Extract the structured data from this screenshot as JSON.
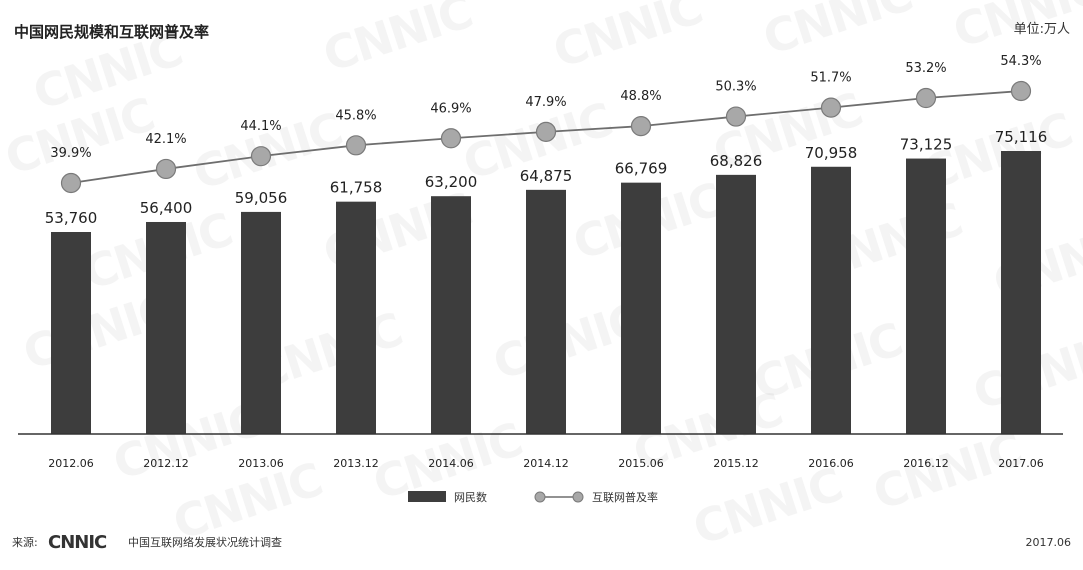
{
  "header": {
    "title": "中国网民规模和互联网普及率",
    "unit": "单位:万人"
  },
  "legend": {
    "bar_label": "网民数",
    "line_label": "互联网普及率"
  },
  "footer": {
    "source_prefix": "来源:",
    "source_logo": "CNNIC",
    "source_text": "中国互联网络发展状况统计调查",
    "date": "2017.06"
  },
  "watermark": "CNNIC",
  "colors": {
    "bar": "#3d3d3d",
    "line": "#6e6e6e",
    "marker_fill": "#a8a8a8",
    "marker_stroke": "#7a7a7a",
    "axis": "#333333"
  },
  "chart_data": {
    "type": "bar",
    "categories": [
      "2012.06",
      "2012.12",
      "2013.06",
      "2013.12",
      "2014.06",
      "2014.12",
      "2015.06",
      "2015.12",
      "2016.06",
      "2016.12",
      "2017.06"
    ],
    "series": [
      {
        "name": "网民数",
        "type": "bar",
        "values": [
          53760,
          56400,
          59056,
          61758,
          63200,
          64875,
          66769,
          68826,
          70958,
          73125,
          75116
        ],
        "labels": [
          "53,760",
          "56,400",
          "59,056",
          "61,758",
          "63,200",
          "64,875",
          "66,769",
          "68,826",
          "70,958",
          "73,125",
          "75,116"
        ]
      },
      {
        "name": "互联网普及率",
        "type": "line",
        "values": [
          39.9,
          42.1,
          44.1,
          45.8,
          46.9,
          47.9,
          48.8,
          50.3,
          51.7,
          53.2,
          54.3
        ],
        "labels": [
          "39.9%",
          "42.1%",
          "44.1%",
          "45.8%",
          "46.9%",
          "47.9%",
          "48.8%",
          "50.3%",
          "51.7%",
          "53.2%",
          "54.3%"
        ]
      }
    ],
    "grid": false,
    "legend_position": "bottom-center"
  }
}
